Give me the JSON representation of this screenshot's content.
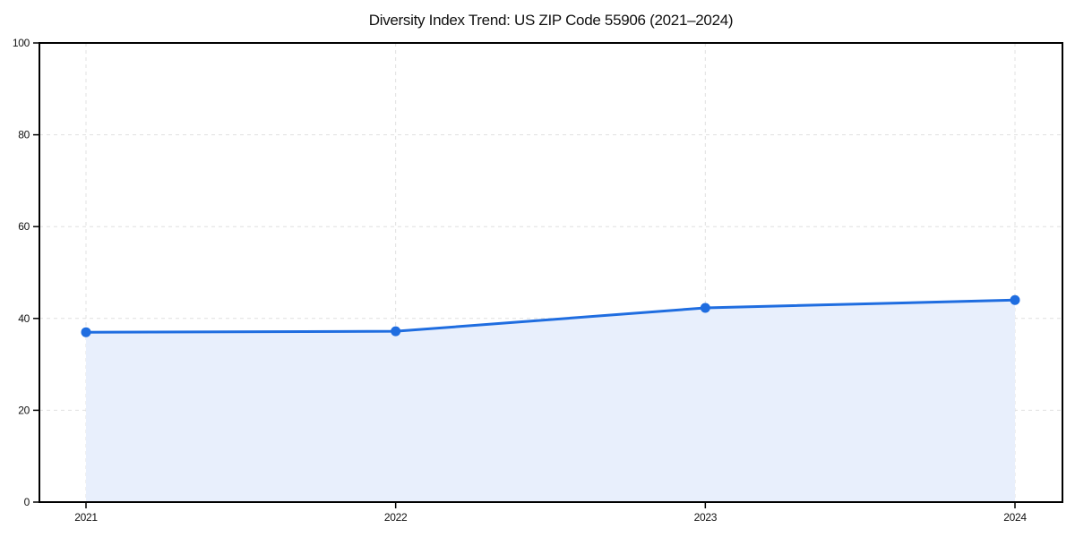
{
  "chart_data": {
    "type": "line",
    "title": "Diversity Index Trend: US ZIP Code 55906 (2021–2024)",
    "categories": [
      "2021",
      "2022",
      "2023",
      "2024"
    ],
    "series": [
      {
        "name": "Diversity Index",
        "values": [
          37,
          37.2,
          42.3,
          44
        ]
      }
    ],
    "xlabel": "",
    "ylabel": "",
    "ylim": [
      0,
      100
    ],
    "yticks": [
      0,
      20,
      40,
      60,
      80,
      100
    ],
    "grid": "dashed-both-axes",
    "legend": "none",
    "area_fill": true,
    "marker": "circle",
    "colors": {
      "line": "#1f6de0",
      "marker": "#1f6de0",
      "area_fill": "#e8effc",
      "grid": "#e0e0e0",
      "axis": "#000000",
      "tick_text": "#111111",
      "background": "#ffffff"
    }
  }
}
